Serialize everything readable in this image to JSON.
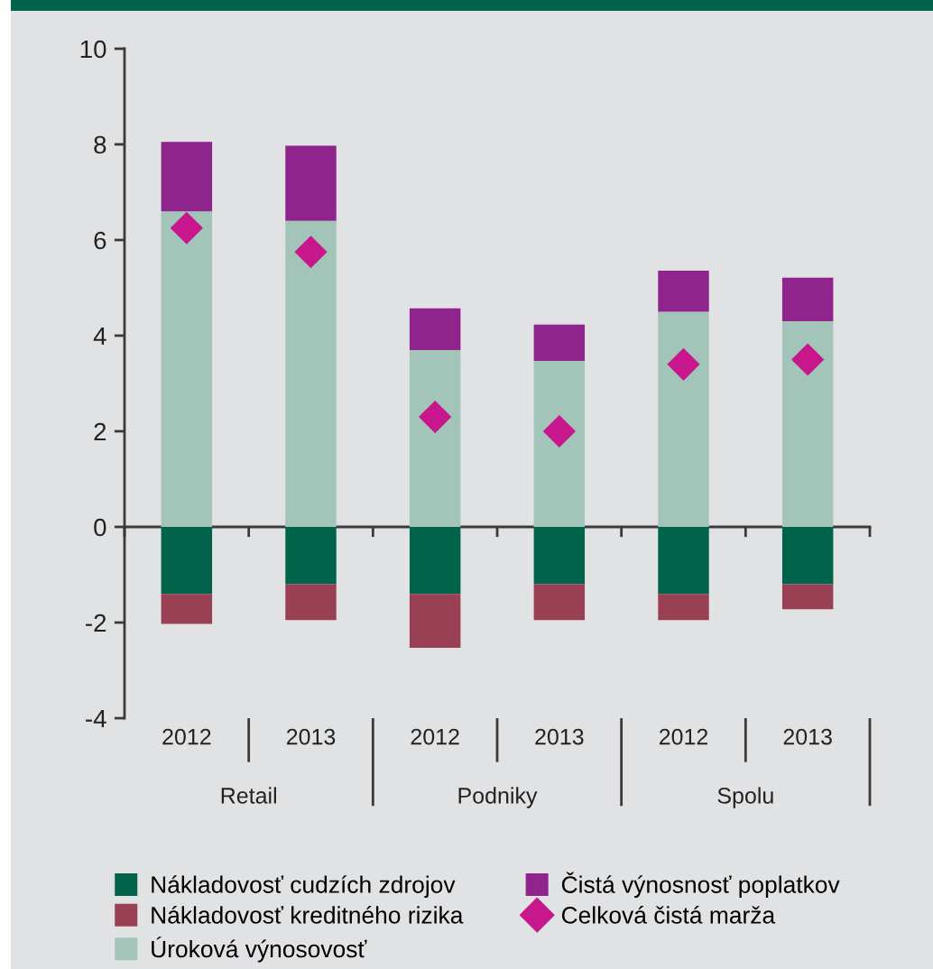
{
  "chart_data": {
    "type": "bar",
    "stacked": true,
    "categories": [
      "2012",
      "2013",
      "2012",
      "2013",
      "2012",
      "2013"
    ],
    "series": [
      {
        "name": "Nákladovosť cudzích zdrojov",
        "color": "#00634a",
        "values": [
          -1.4,
          -1.2,
          -1.4,
          -1.2,
          -1.4,
          -1.2
        ]
      },
      {
        "name": "Nákladovosť kreditného rizika",
        "color": "#9a4055",
        "values": [
          -0.63,
          -0.75,
          -1.13,
          -0.75,
          -0.55,
          -0.52
        ]
      },
      {
        "name": "Úroková výnosovosť",
        "color": "#a3c4b8",
        "values": [
          6.6,
          6.4,
          3.7,
          3.47,
          4.5,
          4.3
        ]
      },
      {
        "name": "Čistá výnosnosť poplatkov",
        "color": "#8e248c",
        "values": [
          1.45,
          1.57,
          0.87,
          0.76,
          0.86,
          0.91
        ]
      },
      {
        "name": "Celková čistá marža",
        "type": "scatter",
        "color": "#c8178c",
        "values": [
          6.25,
          5.75,
          2.3,
          2.0,
          3.4,
          3.5
        ]
      }
    ],
    "ylim": [
      -4,
      10
    ],
    "yticks": [
      -4,
      -2,
      0,
      2,
      4,
      6,
      8,
      10
    ],
    "marker": "diamond",
    "legend": "bottom",
    "annotations": [
      "Retail",
      "Podniky",
      "Spolu"
    ]
  }
}
